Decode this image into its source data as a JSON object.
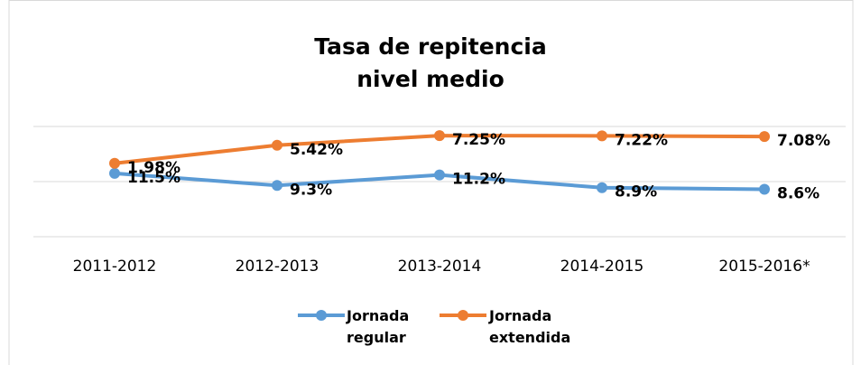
{
  "chart_data": {
    "type": "line",
    "title": "Tasa de repitencia nivel medio",
    "categories": [
      "2011-2012",
      "2012-2013",
      "2013-2014",
      "2014-2015",
      "2015-2016*"
    ],
    "series": [
      {
        "name": "Jornada regular",
        "color": "#5b9bd5",
        "values": [
          11.5,
          9.3,
          11.2,
          8.9,
          8.6
        ],
        "value_labels": [
          "11.5%",
          "9.3%",
          "11.2%",
          "8.9%",
          "8.6%"
        ]
      },
      {
        "name": "Jornada extendida",
        "color": "#ed7d31",
        "axis": "y2",
        "values": [
          1.98,
          5.42,
          7.25,
          7.22,
          7.08
        ],
        "value_labels": [
          "1.98%",
          "5.42%",
          "7.25%",
          "7.22%",
          "7.08%"
        ]
      }
    ],
    "ylim": [
      0,
      20
    ],
    "yticks": [
      0,
      10,
      20
    ],
    "y2lim": [
      -12,
      9
    ],
    "grid": true,
    "legend": "bottom"
  }
}
